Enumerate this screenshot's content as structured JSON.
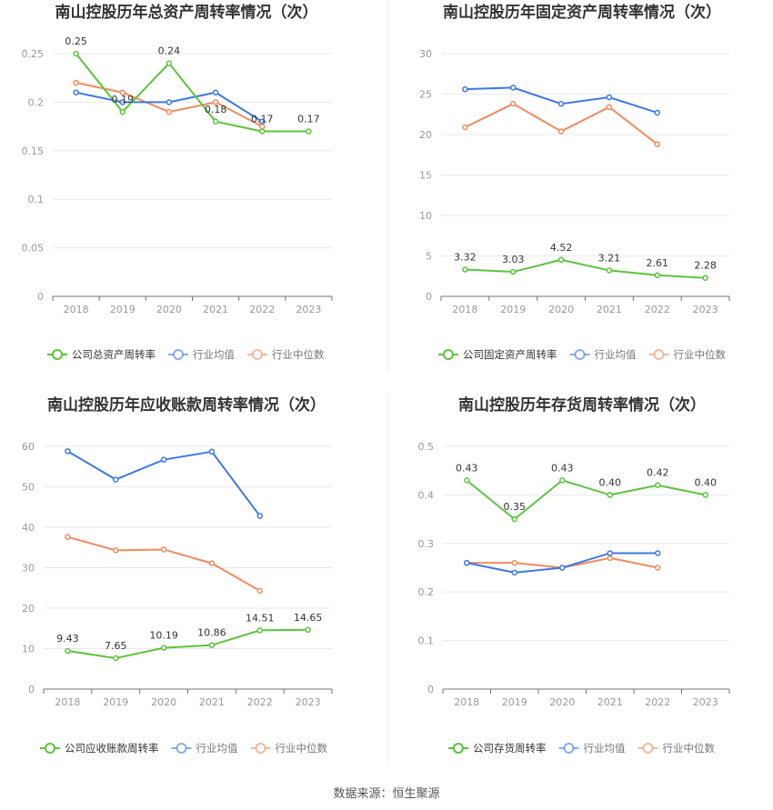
{
  "footer": "数据来源：恒生聚源",
  "legend_labels": {
    "industry_avg": "行业均值",
    "industry_median": "行业中位数"
  },
  "colors": {
    "company": "#5ac53b",
    "industry_avg": "#3c78e6",
    "industry_median": "#f28a5e",
    "grid": "#e8e8ee",
    "axis": "#999999"
  },
  "chart_data": [
    {
      "type": "line",
      "title": "南山控股历年总资产周转率情况（次）",
      "categories": [
        "2018",
        "2019",
        "2020",
        "2021",
        "2022",
        "2023"
      ],
      "ylim": [
        0,
        0.25
      ],
      "yticks": [
        "0",
        "0.05",
        "0.1",
        "0.15",
        "0.2",
        "0.25"
      ],
      "ytick_values": [
        0,
        0.05,
        0.1,
        0.15,
        0.2,
        0.25
      ],
      "legend_company": "公司总资产周转率",
      "series": [
        {
          "name": "公司总资产周转率",
          "key": "company",
          "values": [
            0.25,
            0.19,
            0.24,
            0.18,
            0.17,
            0.17
          ],
          "labels": [
            "0.25",
            "0.19",
            "0.24",
            "0.18",
            "0.17",
            "0.17"
          ]
        },
        {
          "name": "行业均值",
          "key": "industry_avg",
          "values": [
            0.21,
            0.2,
            0.2,
            0.21,
            0.18,
            null
          ]
        },
        {
          "name": "行业中位数",
          "key": "industry_median",
          "values": [
            0.22,
            0.21,
            0.19,
            0.2,
            0.175,
            null
          ]
        }
      ],
      "legend": "bottom",
      "grid": true
    },
    {
      "type": "line",
      "title": "南山控股历年固定资产周转率情况（次）",
      "categories": [
        "2018",
        "2019",
        "2020",
        "2021",
        "2022",
        "2023"
      ],
      "ylim": [
        0,
        30
      ],
      "yticks": [
        "0",
        "5",
        "10",
        "15",
        "20",
        "25",
        "30"
      ],
      "ytick_values": [
        0,
        5,
        10,
        15,
        20,
        25,
        30
      ],
      "legend_company": "公司固定资产周转率",
      "series": [
        {
          "name": "公司固定资产周转率",
          "key": "company",
          "values": [
            3.32,
            3.03,
            4.52,
            3.21,
            2.61,
            2.28
          ],
          "labels": [
            "3.32",
            "3.03",
            "4.52",
            "3.21",
            "2.61",
            "2.28"
          ]
        },
        {
          "name": "行业均值",
          "key": "industry_avg",
          "values": [
            25.6,
            25.8,
            23.8,
            24.6,
            22.7,
            null
          ]
        },
        {
          "name": "行业中位数",
          "key": "industry_median",
          "values": [
            20.9,
            23.8,
            20.4,
            23.4,
            18.8,
            null
          ]
        }
      ],
      "legend": "bottom",
      "grid": true
    },
    {
      "type": "line",
      "title": "南山控股历年应收账款周转率情况（次）",
      "categories": [
        "2018",
        "2019",
        "2020",
        "2021",
        "2022",
        "2023"
      ],
      "ylim": [
        0,
        60
      ],
      "yticks": [
        "0",
        "10",
        "20",
        "30",
        "40",
        "50",
        "60"
      ],
      "ytick_values": [
        0,
        10,
        20,
        30,
        40,
        50,
        60
      ],
      "legend_company": "公司应收账款周转率",
      "series": [
        {
          "name": "公司应收账款周转率",
          "key": "company",
          "values": [
            9.43,
            7.65,
            10.19,
            10.86,
            14.51,
            14.65
          ],
          "labels": [
            "9.43",
            "7.65",
            "10.19",
            "10.86",
            "14.51",
            "14.65"
          ]
        },
        {
          "name": "行业均值",
          "key": "industry_avg",
          "values": [
            58.8,
            51.8,
            56.7,
            58.7,
            42.8,
            null
          ]
        },
        {
          "name": "行业中位数",
          "key": "industry_median",
          "values": [
            37.6,
            34.3,
            34.5,
            31.1,
            24.3,
            null
          ]
        }
      ],
      "legend": "bottom",
      "grid": true
    },
    {
      "type": "line",
      "title": "南山控股历年存货周转率情况（次）",
      "categories": [
        "2018",
        "2019",
        "2020",
        "2021",
        "2022",
        "2023"
      ],
      "ylim": [
        0,
        0.5
      ],
      "yticks": [
        "0",
        "0.1",
        "0.2",
        "0.3",
        "0.4",
        "0.5"
      ],
      "ytick_values": [
        0,
        0.1,
        0.2,
        0.3,
        0.4,
        0.5
      ],
      "legend_company": "公司存货周转率",
      "series": [
        {
          "name": "公司存货周转率",
          "key": "company",
          "values": [
            0.43,
            0.35,
            0.43,
            0.4,
            0.42,
            0.4
          ],
          "labels": [
            "0.43",
            "0.35",
            "0.43",
            "0.40",
            "0.42",
            "0.40"
          ]
        },
        {
          "name": "行业均值",
          "key": "industry_avg",
          "values": [
            0.26,
            0.24,
            0.25,
            0.28,
            0.28,
            null
          ]
        },
        {
          "name": "行业中位数",
          "key": "industry_median",
          "values": [
            0.26,
            0.26,
            0.25,
            0.27,
            0.25,
            null
          ]
        }
      ],
      "legend": "bottom",
      "grid": true
    }
  ]
}
